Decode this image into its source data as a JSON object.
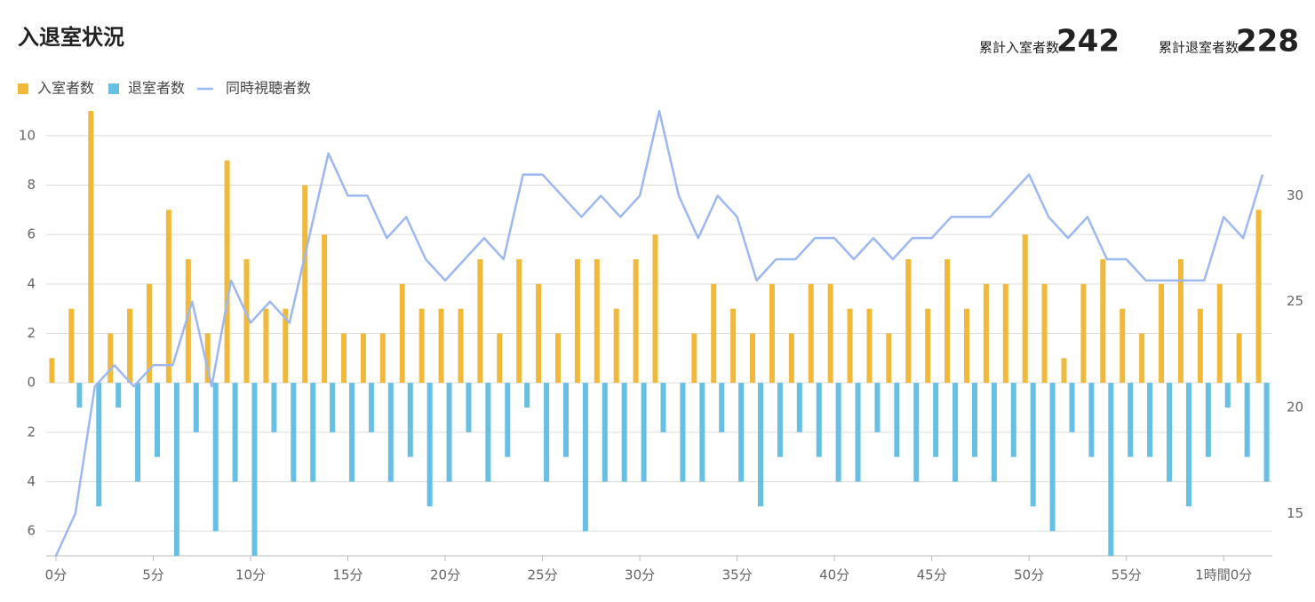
{
  "header": {
    "title": "入退室状況",
    "stats": [
      {
        "label": "累計入室者数",
        "value": 242
      },
      {
        "label": "累計退室者数",
        "value": 228
      }
    ]
  },
  "chart_data": {
    "type": "bar",
    "grid": true,
    "legend": "top-left",
    "categories": [
      "0分",
      null,
      null,
      null,
      null,
      "5分",
      null,
      null,
      null,
      null,
      "10分",
      null,
      null,
      null,
      null,
      "15分",
      null,
      null,
      null,
      null,
      "20分",
      null,
      null,
      null,
      null,
      "25分",
      null,
      null,
      null,
      null,
      "30分",
      null,
      null,
      null,
      null,
      "35分",
      null,
      null,
      null,
      null,
      "40分",
      null,
      null,
      null,
      null,
      "45分",
      null,
      null,
      null,
      null,
      "50分",
      null,
      null,
      null,
      null,
      "55分",
      null,
      null,
      null,
      null,
      "1時間0分",
      null,
      null
    ],
    "ylim": [
      -7,
      11
    ],
    "yticks": [
      {
        "value": -6,
        "label": "6"
      },
      {
        "value": -4,
        "label": "4"
      },
      {
        "value": -2,
        "label": "2"
      },
      0,
      2,
      4,
      6,
      8,
      10
    ],
    "y2lim": [
      13,
      34
    ],
    "y2ticks": [
      15,
      20,
      25,
      30
    ],
    "series": [
      {
        "name": "入室者数",
        "type": "bar",
        "color": "#f0b93a",
        "values": [
          1,
          3,
          11,
          2,
          3,
          4,
          7,
          5,
          2,
          9,
          5,
          3,
          3,
          8,
          6,
          2,
          2,
          2,
          4,
          3,
          3,
          3,
          5,
          2,
          5,
          4,
          2,
          5,
          5,
          3,
          5,
          6,
          0,
          2,
          4,
          3,
          2,
          4,
          2,
          4,
          4,
          3,
          3,
          2,
          5,
          3,
          5,
          3,
          4,
          4,
          6,
          4,
          1,
          4,
          5,
          3,
          2,
          4,
          5,
          3,
          4,
          2,
          7
        ]
      },
      {
        "name": "退室者数",
        "type": "bar",
        "color": "#67bfe3",
        "values": [
          0,
          -1,
          -5,
          -1,
          -4,
          -3,
          -7,
          -2,
          -6,
          -4,
          -7,
          -2,
          -4,
          -4,
          -2,
          -4,
          -2,
          -4,
          -3,
          -5,
          -4,
          -2,
          -4,
          -3,
          -1,
          -4,
          -3,
          -6,
          -4,
          -4,
          -4,
          -2,
          -4,
          -4,
          -2,
          -4,
          -5,
          -3,
          -2,
          -3,
          -4,
          -4,
          -2,
          -3,
          -4,
          -3,
          -4,
          -3,
          -4,
          -3,
          -5,
          -6,
          -2,
          -3,
          -7,
          -3,
          -3,
          -4,
          -5,
          -3,
          -1,
          -3,
          -4
        ]
      },
      {
        "name": "同時視聴者数",
        "type": "line",
        "axis": "y2",
        "color": "#9db8f0",
        "values": [
          13,
          15,
          21,
          22,
          21,
          22,
          22,
          25,
          21,
          26,
          24,
          25,
          24,
          28,
          32,
          30,
          30,
          28,
          29,
          27,
          26,
          27,
          28,
          27,
          31,
          31,
          30,
          29,
          30,
          29,
          30,
          34,
          30,
          28,
          30,
          29,
          26,
          27,
          27,
          28,
          28,
          27,
          28,
          27,
          28,
          28,
          29,
          29,
          29,
          30,
          31,
          29,
          28,
          29,
          27,
          27,
          26,
          26,
          26,
          26,
          29,
          28,
          31
        ]
      }
    ]
  }
}
